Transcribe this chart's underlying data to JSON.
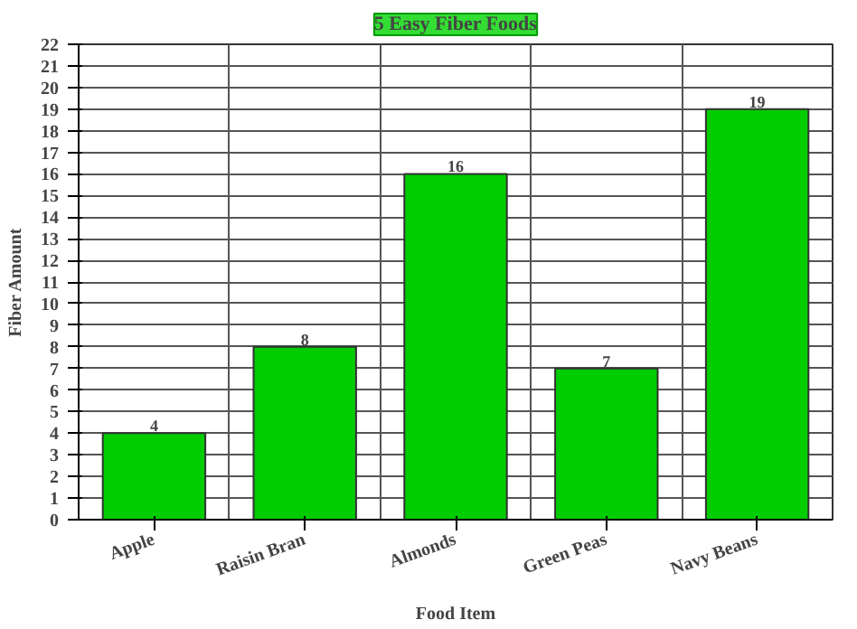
{
  "chart_data": {
    "type": "bar",
    "title": "5 Easy Fiber Foods",
    "xlabel": "Food Item",
    "ylabel": "Fiber Amount",
    "categories": [
      "Apple",
      "Raisin Bran",
      "Almonds",
      "Green Peas",
      "Navy Beans"
    ],
    "values": [
      4,
      8,
      16,
      7,
      19
    ],
    "color": "#00cc00",
    "ylim": [
      0,
      22
    ],
    "yticks": [
      0,
      1,
      2,
      3,
      4,
      5,
      6,
      7,
      8,
      9,
      10,
      11,
      12,
      13,
      14,
      15,
      16,
      17,
      18,
      19,
      20,
      21,
      22
    ],
    "grid": true,
    "data_labels": true
  }
}
